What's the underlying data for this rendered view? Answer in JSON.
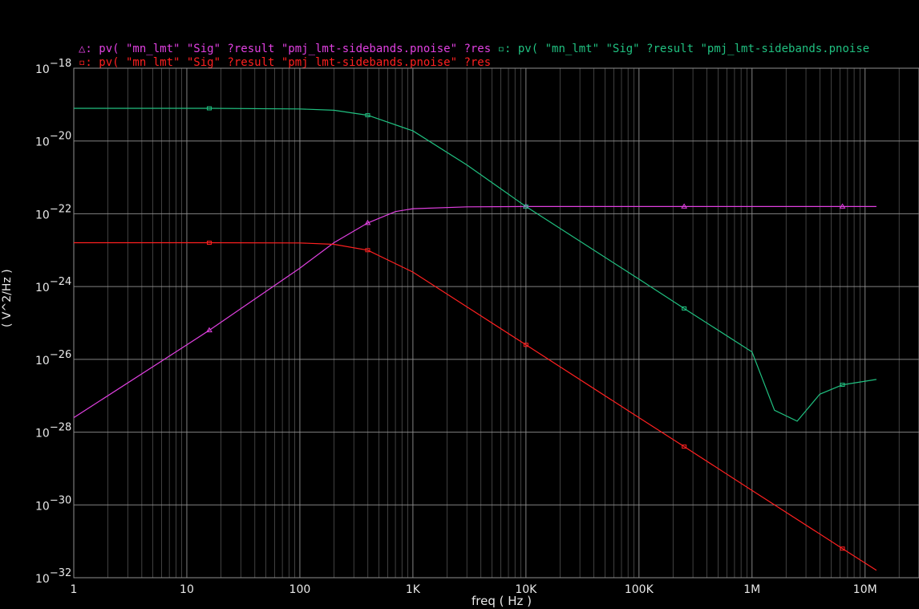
{
  "chart_data": {
    "type": "line",
    "xscale": "log",
    "yscale": "log",
    "xlim": [
      1,
      30000000
    ],
    "ylim": [
      1e-32,
      1e-18
    ],
    "grid": true,
    "xlabel": "freq ( Hz )",
    "ylabel": "( V^2/Hz )",
    "x_ticks": [
      {
        "value": 1,
        "label": "1"
      },
      {
        "value": 10,
        "label": "10"
      },
      {
        "value": 100,
        "label": "100"
      },
      {
        "value": 1000,
        "label": "1K"
      },
      {
        "value": 10000,
        "label": "10K"
      },
      {
        "value": 100000,
        "label": "100K"
      },
      {
        "value": 1000000,
        "label": "1M"
      },
      {
        "value": 10000000,
        "label": "10M"
      }
    ],
    "y_ticks": [
      {
        "value": 1e-18,
        "base": "10",
        "exp": "−18"
      },
      {
        "value": 1e-20,
        "base": "10",
        "exp": "−20"
      },
      {
        "value": 1e-22,
        "base": "10",
        "exp": "−22"
      },
      {
        "value": 1e-24,
        "base": "10",
        "exp": "−24"
      },
      {
        "value": 1e-26,
        "base": "10",
        "exp": "−26"
      },
      {
        "value": 1e-28,
        "base": "10",
        "exp": "−28"
      },
      {
        "value": 1e-30,
        "base": "10",
        "exp": "−30"
      },
      {
        "value": 1e-32,
        "base": "10",
        "exp": "−32"
      }
    ],
    "series": [
      {
        "name": "pv( \"mn_lmt\" \"Sig\" ?result \"pmj_lmt-sidebands.pnoise\" ?res",
        "marker": "triangle",
        "color": "#e040e0",
        "x": [
          1,
          10,
          15.8,
          100,
          200,
          398,
          700,
          1000,
          3000,
          10000,
          100000,
          251000,
          6310000,
          12600000
        ],
        "y": [
          2.5e-28,
          2.5e-26,
          6.3e-26,
          3.2e-24,
          1.6e-23,
          5.6e-23,
          1.15e-22,
          1.38e-22,
          1.55e-22,
          1.58e-22,
          1.58e-22,
          1.58e-22,
          1.58e-22,
          1.58e-22
        ]
      },
      {
        "name": "pv( \"mn_lmt\" \"Sig\" ?result \"pmj_lmt-sidebands.pnoise",
        "marker": "square",
        "color": "#20c080",
        "x": [
          1,
          15.8,
          100,
          200,
          398,
          1000,
          3000,
          10000,
          100000,
          251000,
          1000000,
          1580000,
          2510000,
          3980000,
          6310000,
          12600000
        ],
        "y": [
          7.9e-20,
          7.9e-20,
          7.6e-20,
          7e-20,
          5.1e-20,
          1.9e-20,
          2.2e-21,
          1.58e-22,
          1.6e-24,
          2.5e-25,
          1.6e-26,
          4e-28,
          2e-28,
          1.1e-27,
          2e-27,
          2.8e-27
        ]
      },
      {
        "name": "pv( \"mn_lmt\" \"Sig\" ?result \"pmj_lmt-sidebands.pnoise\" ?res",
        "marker": "circle",
        "color": "#ff2020",
        "x": [
          1,
          15.8,
          100,
          200,
          398,
          1000,
          10000,
          100000,
          251000,
          1000000,
          6310000,
          12600000
        ],
        "y": [
          1.6e-23,
          1.6e-23,
          1.58e-23,
          1.45e-23,
          1e-23,
          2.5e-24,
          2.5e-26,
          2.5e-28,
          4e-29,
          2.5e-30,
          6.3e-32,
          1.6e-32
        ]
      }
    ]
  },
  "legend": {
    "line1": {
      "marker1": "△:",
      "text1": " pv( \"mn_lmt\" \"Sig\" ?result \"pmj_lmt-sidebands.pnoise\" ?res ",
      "marker2": "▫:",
      "text2": " pv( \"mn_lmt\" \"Sig\" ?result \"pmj_lmt-sidebands.pnoise"
    },
    "line2": {
      "marker3": "▫:",
      "text3": " pv( \"mn_lmt\" \"Sig\" ?result \"pmj_lmt-sidebands.pnoise\" ?res"
    }
  },
  "colors": {
    "background": "#000000",
    "grid": "#909090",
    "text": "#e8e8e8",
    "magenta": "#e040e0",
    "green": "#20c080",
    "red": "#ff2020"
  }
}
